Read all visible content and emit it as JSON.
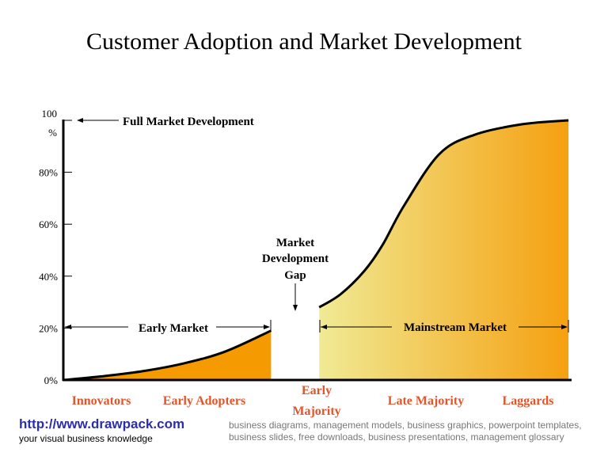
{
  "title": "Customer Adoption and Market Development",
  "colors": {
    "early_fill": "#f59a00",
    "mainstream_fill_start": "#f0ea94",
    "mainstream_fill_end": "#f5a010",
    "category_text": "#e2552b",
    "link": "#2b2fa8"
  },
  "chart_data": {
    "type": "area",
    "ylim": [
      0,
      100
    ],
    "xlim": [
      0,
      100
    ],
    "yticks": [
      "0%",
      "20%",
      "40%",
      "60%",
      "80%",
      "100 %"
    ],
    "ytick_values": [
      0,
      20,
      40,
      60,
      80,
      100
    ],
    "series": [
      {
        "name": "Early  Market",
        "points": [
          [
            0,
            0
          ],
          [
            8,
            1.5
          ],
          [
            16,
            3.5
          ],
          [
            24,
            6.5
          ],
          [
            32,
            11
          ],
          [
            41,
            19
          ]
        ]
      },
      {
        "name": "Mainstream Market",
        "points": [
          [
            50.5,
            28
          ],
          [
            54.7,
            33
          ],
          [
            59.4,
            42
          ],
          [
            63,
            52
          ],
          [
            67.2,
            67
          ],
          [
            74.2,
            87
          ],
          [
            81.25,
            94.5
          ],
          [
            90.6,
            98.5
          ],
          [
            99.7,
            100
          ]
        ]
      }
    ],
    "categories": [
      "Innovators",
      "Early Adopters",
      "Early Majority",
      "Late Majority",
      "Laggards"
    ],
    "annotations": {
      "full_market": "Full Market Development",
      "gap": [
        "Market",
        "Development",
        "Gap"
      ],
      "early_market": "Early  Market",
      "mainstream_market": "Mainstream Market"
    }
  },
  "footer": {
    "url": "http://www.drawpack.com",
    "tagline": "your visual business knowledge",
    "keywords": "business diagrams, management models, business graphics, powerpoint templates, business slides, free downloads, business presentations, management glossary"
  }
}
